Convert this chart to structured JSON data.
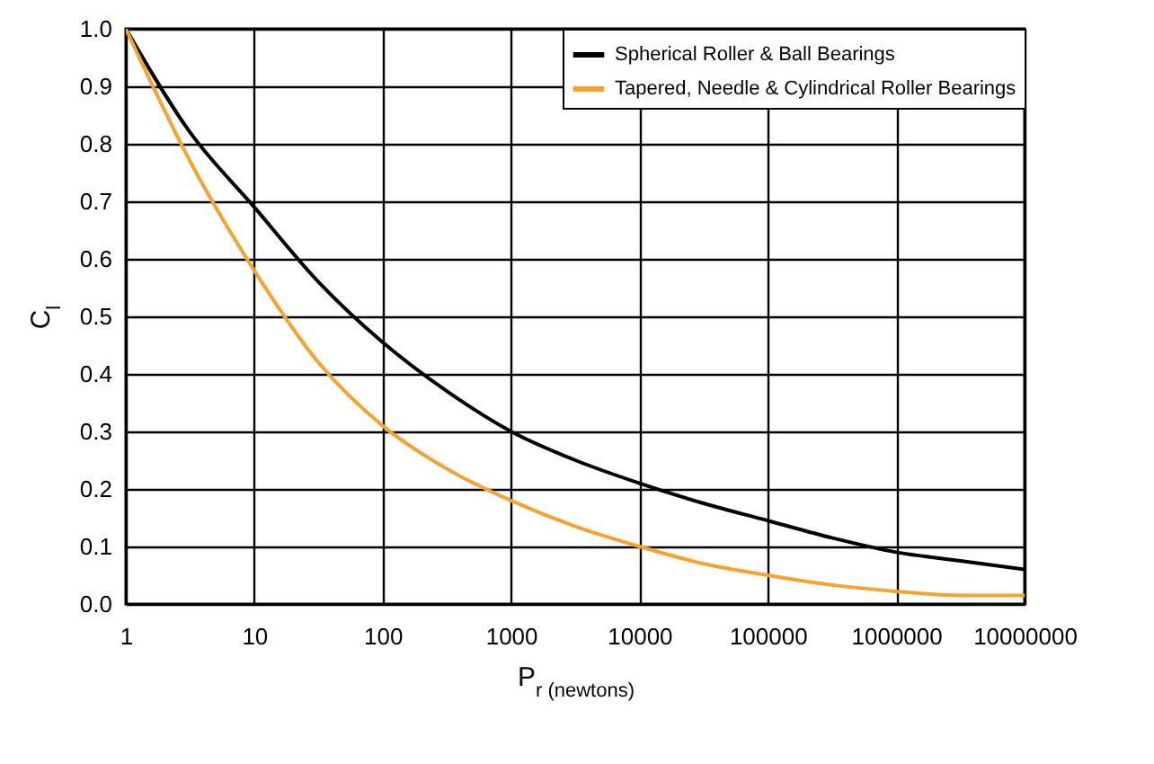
{
  "chart_data": {
    "type": "line",
    "xlabel": "P$_{r (newtons)}$",
    "ylabel": "C$_{l}$",
    "log": "x",
    "xlim": [
      1,
      10000000
    ],
    "xticks": [
      1,
      10,
      100,
      1000,
      10000,
      100000,
      1000000,
      10000000
    ],
    "ylim": [
      0,
      1
    ],
    "yticks": [
      {
        "value": 0,
        "label": "0.0"
      },
      0.1,
      0.2,
      0.3,
      0.4,
      0.5,
      0.6,
      0.7,
      0.8,
      0.9,
      {
        "value": 1,
        "label": "1.0"
      }
    ],
    "grid": true,
    "legend": "top right",
    "x": [
      1,
      3.162,
      10,
      31.62,
      100,
      316.2,
      1000,
      3162,
      10000,
      31620,
      100000,
      316200,
      1000000,
      3162000,
      10000000
    ],
    "series": [
      {
        "name": "Spherical Roller & Ball Bearings",
        "color": "#000000",
        "values": [
          1.0,
          0.82,
          0.69,
          0.56,
          0.455,
          0.37,
          0.3,
          0.25,
          0.21,
          0.175,
          0.145,
          0.115,
          0.09,
          0.075,
          0.06
        ]
      },
      {
        "name": "Tapered, Needle & Cylindrical Roller Bearings",
        "color": "#f7a12e",
        "values": [
          1.0,
          0.77,
          0.58,
          0.42,
          0.31,
          0.235,
          0.18,
          0.135,
          0.1,
          0.07,
          0.05,
          0.033,
          0.022,
          0.015,
          0.015
        ]
      }
    ]
  }
}
